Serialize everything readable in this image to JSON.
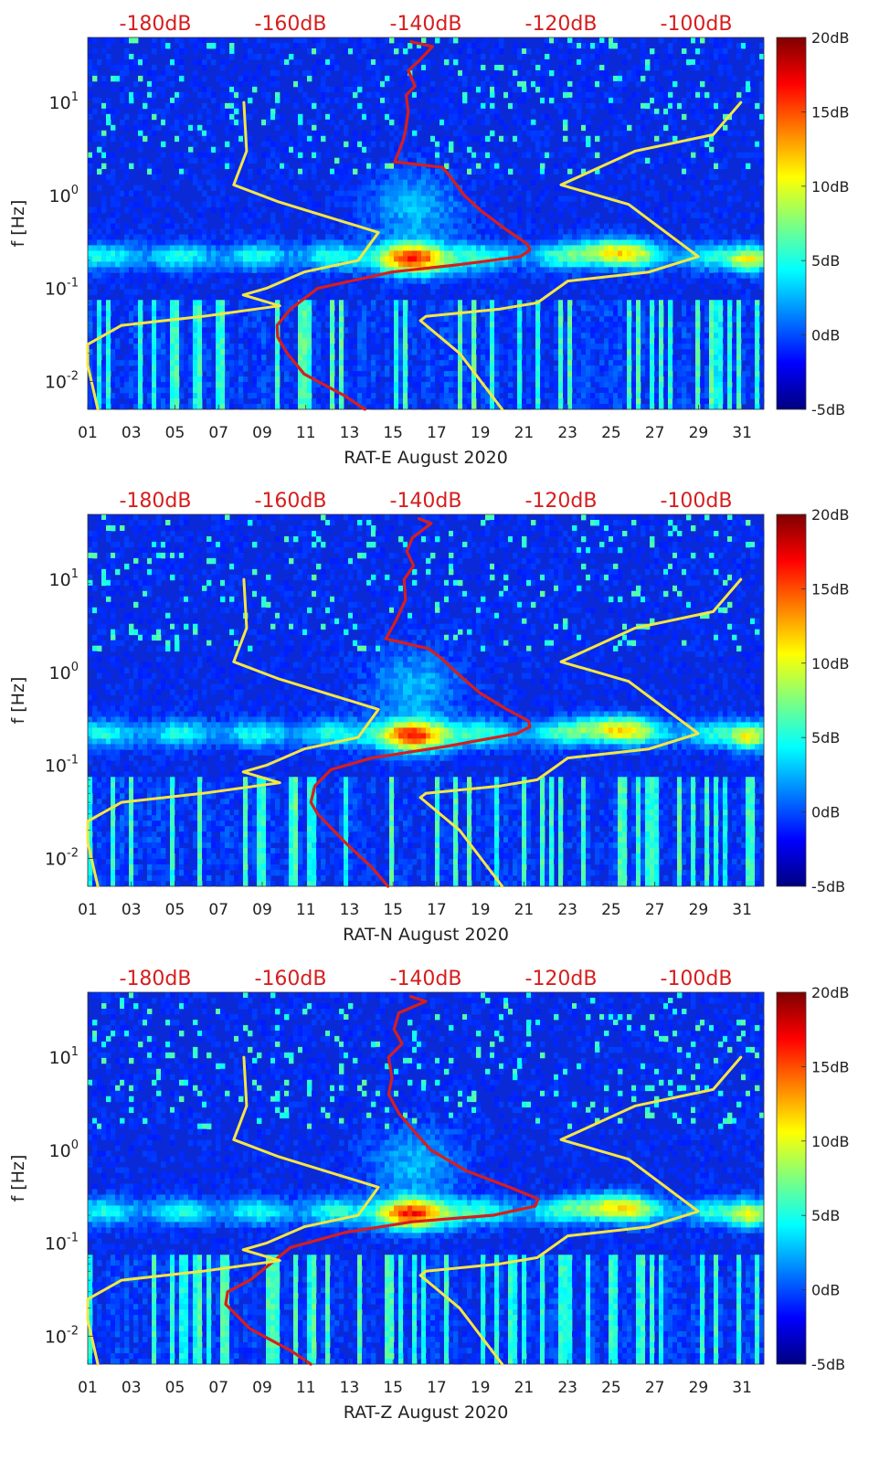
{
  "figure": {
    "ylabel": "f [Hz]",
    "colorbar_ticks": [
      "20dB",
      "15dB",
      "10dB",
      "5dB",
      "0dB",
      "-5dB"
    ],
    "colors": {
      "psd_curve": "#d61e1e",
      "model_curve": "#f5e642",
      "tick_labels": "#222222",
      "top_axis_labels": "#d61e1e",
      "jet_start": "#00007f",
      "jet_end": "#7f0000"
    }
  },
  "chart_data": [
    {
      "type": "heatmap",
      "title": "",
      "xlabel": "RAT-E August 2020",
      "ylabel": "f [Hz]",
      "x_ticks": [
        "01",
        "03",
        "05",
        "07",
        "09",
        "11",
        "13",
        "15",
        "17",
        "19",
        "21",
        "23",
        "25",
        "27",
        "29",
        "31"
      ],
      "x_range": [
        1,
        32
      ],
      "y_scale": "log",
      "y_range": [
        0.005,
        50
      ],
      "y_ticks": [
        {
          "value": 0.01,
          "base": "10",
          "exp": "-2"
        },
        {
          "value": 0.1,
          "base": "10",
          "exp": "-1"
        },
        {
          "value": 1,
          "base": "10",
          "exp": "0"
        },
        {
          "value": 10,
          "base": "10",
          "exp": "1"
        }
      ],
      "colorbar": {
        "range_db": [
          -5,
          20
        ],
        "ticks": [
          "20dB",
          "15dB",
          "10dB",
          "5dB",
          "0dB",
          "-5dB"
        ],
        "colormap": "jet"
      },
      "top_axis": {
        "labels": [
          "-180dB",
          "-160dB",
          "-140dB",
          "-120dB",
          "-100dB"
        ],
        "range_db": [
          -190,
          -90
        ]
      },
      "series": [
        {
          "name": "PSD (top axis, dB)",
          "color": "#d61e1e",
          "points": [
            [
              -142.2,
              45
            ],
            [
              -139,
              40
            ],
            [
              -141,
              28
            ],
            [
              -142.6,
              22
            ],
            [
              -141.6,
              15
            ],
            [
              -142.9,
              12
            ],
            [
              -142.6,
              8
            ],
            [
              -143,
              5
            ],
            [
              -143.4,
              3.8
            ],
            [
              -144.6,
              2.3
            ],
            [
              -137.5,
              2.0
            ],
            [
              -136.1,
              1.5
            ],
            [
              -134.3,
              1.0
            ],
            [
              -132,
              0.7
            ],
            [
              -128.5,
              0.45
            ],
            [
              -125,
              0.3
            ],
            [
              -124.6,
              0.26
            ],
            [
              -126,
              0.22
            ],
            [
              -135,
              0.18
            ],
            [
              -145,
              0.15
            ],
            [
              -156,
              0.1
            ],
            [
              -160,
              0.06
            ],
            [
              -162,
              0.04
            ],
            [
              -161.9,
              0.03
            ],
            [
              -160.5,
              0.02
            ],
            [
              -158,
              0.012
            ],
            [
              -152,
              0.007
            ],
            [
              -149,
              0.005
            ]
          ]
        },
        {
          "name": "Model limits (top axis, dB)",
          "color": "#f5e642",
          "points": [
            [
              -166.9,
              10
            ],
            [
              -166.5,
              3
            ],
            [
              -168.4,
              1.3
            ],
            [
              -161.7,
              0.85
            ],
            [
              -147,
              0.4
            ],
            [
              -150,
              0.2
            ],
            [
              -158,
              0.15
            ],
            [
              -163.6,
              0.1
            ],
            [
              -167,
              0.085
            ],
            [
              -161.6,
              0.065
            ],
            [
              -173,
              0.05
            ],
            [
              -185,
              0.04
            ],
            [
              -190,
              0.025
            ],
            [
              -190,
              0.015
            ],
            [
              -188.5,
              0.005
            ]
          ]
        },
        {
          "name": "Model upper limit (top axis, dB)",
          "color": "#f5e642",
          "points": [
            [
              -93.4,
              10
            ],
            [
              -97.5,
              4.5
            ],
            [
              -109,
              3
            ],
            [
              -120,
              1.3
            ],
            [
              -110,
              0.8
            ],
            [
              -99.7,
              0.22
            ],
            [
              -107,
              0.15
            ],
            [
              -119,
              0.12
            ],
            [
              -123.5,
              0.07
            ],
            [
              -129,
              0.06
            ],
            [
              -140,
              0.05
            ],
            [
              -140.8,
              0.045
            ],
            [
              -135,
              0.02
            ],
            [
              -128.7,
              0.005
            ]
          ]
        }
      ]
    },
    {
      "type": "heatmap",
      "title": "",
      "xlabel": "RAT-N August 2020",
      "ylabel": "f [Hz]",
      "x_ticks": [
        "01",
        "03",
        "05",
        "07",
        "09",
        "11",
        "13",
        "15",
        "17",
        "19",
        "21",
        "23",
        "25",
        "27",
        "29",
        "31"
      ],
      "x_range": [
        1,
        32
      ],
      "y_scale": "log",
      "y_range": [
        0.005,
        50
      ],
      "y_ticks": [
        {
          "value": 0.01,
          "base": "10",
          "exp": "-2"
        },
        {
          "value": 0.1,
          "base": "10",
          "exp": "-1"
        },
        {
          "value": 1,
          "base": "10",
          "exp": "0"
        },
        {
          "value": 10,
          "base": "10",
          "exp": "1"
        }
      ],
      "colorbar": {
        "range_db": [
          -5,
          20
        ],
        "ticks": [
          "20dB",
          "15dB",
          "10dB",
          "5dB",
          "0dB",
          "-5dB"
        ],
        "colormap": "jet"
      },
      "top_axis": {
        "labels": [
          "-180dB",
          "-160dB",
          "-140dB",
          "-120dB",
          "-100dB"
        ],
        "range_db": [
          -190,
          -90
        ]
      },
      "series": [
        {
          "name": "PSD (top axis, dB)",
          "color": "#d61e1e",
          "points": [
            [
              -141,
              45
            ],
            [
              -139.2,
              40
            ],
            [
              -142,
              28
            ],
            [
              -142.8,
              20
            ],
            [
              -141.8,
              14
            ],
            [
              -143.2,
              10
            ],
            [
              -143,
              6
            ],
            [
              -144.5,
              3.5
            ],
            [
              -145.9,
              2.3
            ],
            [
              -139.6,
              1.8
            ],
            [
              -137.6,
              1.4
            ],
            [
              -135.5,
              1.0
            ],
            [
              -132,
              0.6
            ],
            [
              -128,
              0.4
            ],
            [
              -124.8,
              0.3
            ],
            [
              -124.6,
              0.26
            ],
            [
              -126.5,
              0.22
            ],
            [
              -137,
              0.16
            ],
            [
              -148,
              0.12
            ],
            [
              -154,
              0.09
            ],
            [
              -156.4,
              0.06
            ],
            [
              -157,
              0.04
            ],
            [
              -156,
              0.03
            ],
            [
              -152,
              0.015
            ],
            [
              -148,
              0.008
            ],
            [
              -145.6,
              0.005
            ]
          ]
        },
        {
          "name": "Model limits (top axis, dB)",
          "color": "#f5e642",
          "points": [
            [
              -166.9,
              10
            ],
            [
              -166.5,
              3
            ],
            [
              -168.4,
              1.3
            ],
            [
              -161.7,
              0.85
            ],
            [
              -147,
              0.4
            ],
            [
              -150,
              0.2
            ],
            [
              -158,
              0.15
            ],
            [
              -163.6,
              0.1
            ],
            [
              -167,
              0.085
            ],
            [
              -161.6,
              0.065
            ],
            [
              -173,
              0.05
            ],
            [
              -185,
              0.04
            ],
            [
              -190,
              0.025
            ],
            [
              -190,
              0.015
            ],
            [
              -188.5,
              0.005
            ]
          ]
        },
        {
          "name": "Model upper limit (top axis, dB)",
          "color": "#f5e642",
          "points": [
            [
              -93.4,
              10
            ],
            [
              -97.5,
              4.5
            ],
            [
              -109,
              3
            ],
            [
              -120,
              1.3
            ],
            [
              -110,
              0.8
            ],
            [
              -99.7,
              0.22
            ],
            [
              -107,
              0.15
            ],
            [
              -119,
              0.12
            ],
            [
              -123.5,
              0.07
            ],
            [
              -129,
              0.06
            ],
            [
              -140,
              0.05
            ],
            [
              -140.8,
              0.045
            ],
            [
              -135,
              0.02
            ],
            [
              -128.7,
              0.005
            ]
          ]
        }
      ]
    },
    {
      "type": "heatmap",
      "title": "",
      "xlabel": "RAT-Z August 2020",
      "ylabel": "f [Hz]",
      "x_ticks": [
        "01",
        "03",
        "05",
        "07",
        "09",
        "11",
        "13",
        "15",
        "17",
        "19",
        "21",
        "23",
        "25",
        "27",
        "29",
        "31"
      ],
      "x_range": [
        1,
        32
      ],
      "y_scale": "log",
      "y_range": [
        0.005,
        50
      ],
      "y_ticks": [
        {
          "value": 0.01,
          "base": "10",
          "exp": "-2"
        },
        {
          "value": 0.1,
          "base": "10",
          "exp": "-1"
        },
        {
          "value": 1,
          "base": "10",
          "exp": "0"
        },
        {
          "value": 10,
          "base": "10",
          "exp": "1"
        }
      ],
      "colorbar": {
        "range_db": [
          -5,
          20
        ],
        "ticks": [
          "20dB",
          "15dB",
          "10dB",
          "5dB",
          "0dB",
          "-5dB"
        ],
        "colormap": "jet"
      },
      "top_axis": {
        "labels": [
          "-180dB",
          "-160dB",
          "-140dB",
          "-120dB",
          "-100dB"
        ],
        "range_db": [
          -190,
          -90
        ]
      },
      "series": [
        {
          "name": "PSD (top axis, dB)",
          "color": "#d61e1e",
          "points": [
            [
              -142.2,
              45
            ],
            [
              -140,
              40
            ],
            [
              -144,
              30
            ],
            [
              -144.7,
              20
            ],
            [
              -143.5,
              14
            ],
            [
              -145.5,
              10
            ],
            [
              -145,
              6
            ],
            [
              -145.5,
              4
            ],
            [
              -144,
              2.5
            ],
            [
              -141.4,
              1.5
            ],
            [
              -139.2,
              1.0
            ],
            [
              -134,
              0.6
            ],
            [
              -127.6,
              0.4
            ],
            [
              -123.4,
              0.3
            ],
            [
              -123.8,
              0.25
            ],
            [
              -130,
              0.2
            ],
            [
              -142,
              0.17
            ],
            [
              -152,
              0.13
            ],
            [
              -160,
              0.09
            ],
            [
              -163,
              0.06
            ],
            [
              -166,
              0.04
            ],
            [
              -169.3,
              0.03
            ],
            [
              -169.6,
              0.022
            ],
            [
              -166,
              0.012
            ],
            [
              -160,
              0.007
            ],
            [
              -157,
              0.005
            ]
          ]
        },
        {
          "name": "Model limits (top axis, dB)",
          "color": "#f5e642",
          "points": [
            [
              -166.9,
              10
            ],
            [
              -166.5,
              3
            ],
            [
              -168.4,
              1.3
            ],
            [
              -161.7,
              0.85
            ],
            [
              -147,
              0.4
            ],
            [
              -150,
              0.2
            ],
            [
              -158,
              0.15
            ],
            [
              -163.6,
              0.1
            ],
            [
              -167,
              0.085
            ],
            [
              -161.6,
              0.065
            ],
            [
              -173,
              0.05
            ],
            [
              -185,
              0.04
            ],
            [
              -190,
              0.025
            ],
            [
              -190,
              0.015
            ],
            [
              -188.5,
              0.005
            ]
          ]
        },
        {
          "name": "Model upper limit (top axis, dB)",
          "color": "#f5e642",
          "points": [
            [
              -93.4,
              10
            ],
            [
              -97.5,
              4.5
            ],
            [
              -109,
              3
            ],
            [
              -120,
              1.3
            ],
            [
              -110,
              0.8
            ],
            [
              -99.7,
              0.22
            ],
            [
              -107,
              0.15
            ],
            [
              -119,
              0.12
            ],
            [
              -123.5,
              0.07
            ],
            [
              -129,
              0.06
            ],
            [
              -140,
              0.05
            ],
            [
              -140.8,
              0.045
            ],
            [
              -135,
              0.02
            ],
            [
              -128.7,
              0.005
            ]
          ]
        }
      ]
    }
  ]
}
